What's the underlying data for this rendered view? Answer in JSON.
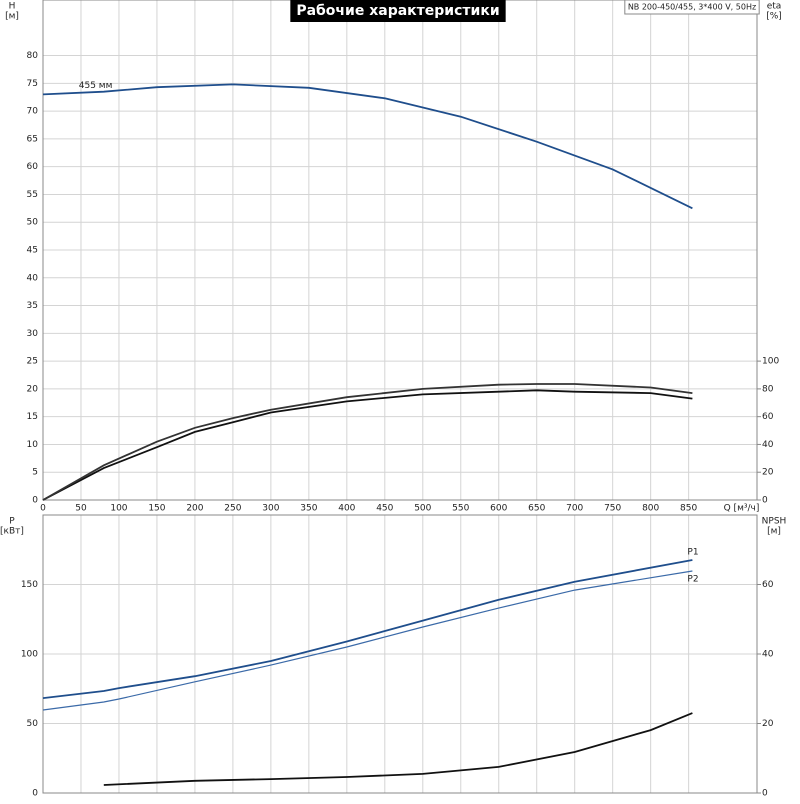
{
  "title": "Рабочие характеристики",
  "model": "NB 200-450/455, 3*400 V, 50Hz",
  "chart_data": [
    {
      "type": "line",
      "ylabel": "H",
      "yunit": "[м]",
      "y2label": "eta",
      "y2unit": "[%]",
      "xlabel": "Q [м³/ч]",
      "xlim": [
        0,
        940
      ],
      "xticks": [
        0,
        50,
        100,
        150,
        200,
        250,
        300,
        350,
        400,
        450,
        500,
        550,
        600,
        650,
        700,
        750,
        800,
        850
      ],
      "ylim": [
        0,
        90
      ],
      "yticks": [
        0,
        5,
        10,
        15,
        20,
        25,
        30,
        35,
        40,
        45,
        50,
        55,
        60,
        65,
        70,
        75,
        80
      ],
      "y2lim": [
        0,
        360
      ],
      "y2ticks": [
        0,
        20,
        40,
        60,
        80,
        100
      ],
      "grid": true,
      "series": [
        {
          "name": "455 мм",
          "color": "#1f4e8c",
          "x": [
            0,
            80,
            150,
            250,
            350,
            450,
            550,
            650,
            750,
            855
          ],
          "values": [
            73,
            73.5,
            74.3,
            74.8,
            74.2,
            72.3,
            69,
            64.5,
            59.5,
            52.5
          ]
        },
        {
          "color": "#111111",
          "axis": "y2",
          "x": [
            0,
            80,
            150,
            200,
            250,
            300,
            400,
            500,
            600,
            650,
            700,
            800,
            855
          ],
          "values": [
            0,
            23,
            38,
            49,
            56,
            63,
            71,
            76,
            78,
            79,
            78,
            77,
            73
          ]
        },
        {
          "color": "#333333",
          "axis": "y2",
          "x": [
            0,
            80,
            150,
            200,
            250,
            300,
            400,
            500,
            600,
            650,
            700,
            800,
            855
          ],
          "values": [
            0,
            25,
            42,
            52,
            59,
            65,
            74,
            80,
            83,
            83.5,
            83.5,
            81,
            77
          ]
        }
      ]
    },
    {
      "type": "line",
      "ylabel": "P",
      "yunit": "[кВт]",
      "y2label": "NPSH",
      "y2unit": "[м]",
      "xlim": [
        0,
        940
      ],
      "ylim": [
        0,
        200
      ],
      "yticks": [
        0,
        50,
        100,
        150
      ],
      "y2lim": [
        0,
        80
      ],
      "y2ticks": [
        0,
        20,
        40,
        60
      ],
      "grid": true,
      "series": [
        {
          "name": "P1",
          "color": "#1f4e8c",
          "x": [
            0,
            80,
            100,
            200,
            300,
            400,
            500,
            600,
            700,
            855
          ],
          "values": [
            68.3,
            73.4,
            75.5,
            84,
            95,
            109,
            124,
            139,
            152,
            167.6
          ]
        },
        {
          "name": "P2",
          "color": "#3b6aa8",
          "x": [
            0,
            80,
            100,
            200,
            300,
            400,
            500,
            600,
            700,
            855
          ],
          "values": [
            59.7,
            65.5,
            67.6,
            80,
            92,
            105,
            119.4,
            133,
            146,
            159.7
          ]
        },
        {
          "color": "#111111",
          "axis": "y2",
          "x": [
            80,
            200,
            300,
            400,
            500,
            600,
            700,
            800,
            855
          ],
          "values": [
            2.3,
            3.5,
            4,
            4.6,
            5.5,
            7.5,
            11.8,
            18.1,
            23
          ]
        }
      ]
    }
  ]
}
